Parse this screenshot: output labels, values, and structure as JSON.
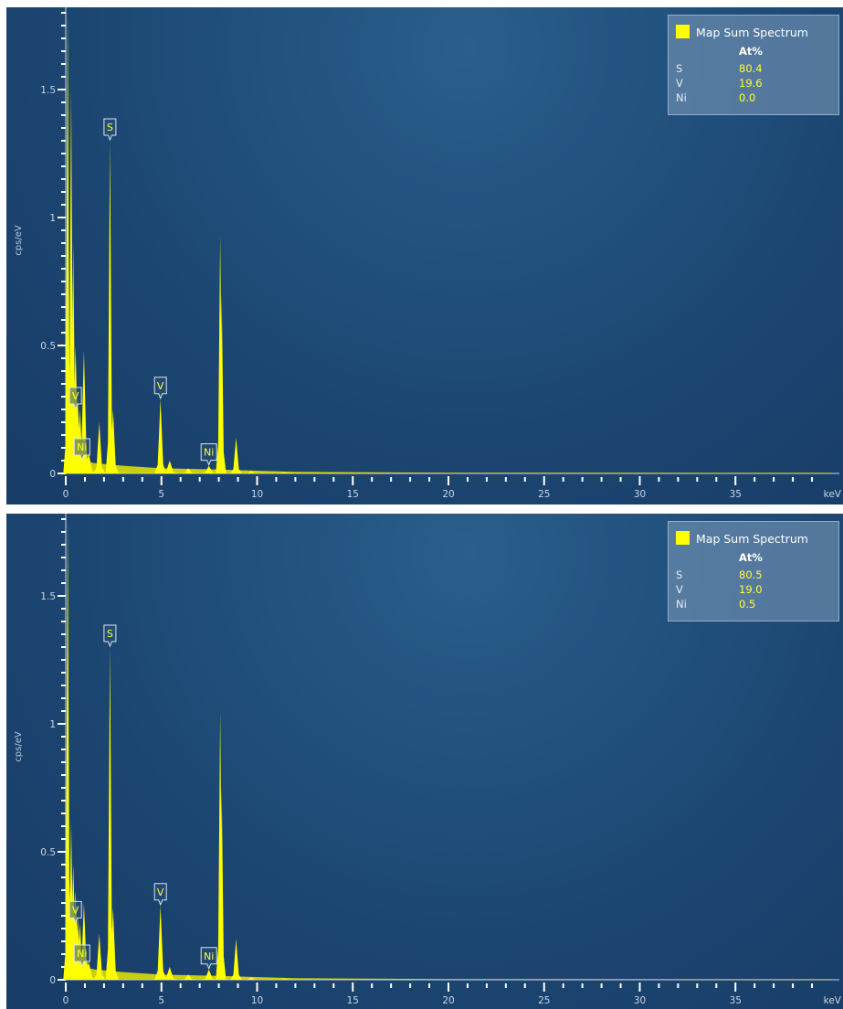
{
  "colors": {
    "accent": "#ffff00",
    "background": "#1f4a77"
  },
  "chart_data": [
    {
      "type": "line",
      "ylabel": "cps/eV",
      "xunit": "keV",
      "xlim": [
        0,
        40
      ],
      "ylim": [
        0,
        1.8
      ],
      "x_ticks": [
        "0",
        "5",
        "10",
        "15",
        "20",
        "25",
        "30",
        "35"
      ],
      "y_ticks": [
        "0",
        "0.5",
        "1",
        "1.5"
      ],
      "x_tick_values": [
        0,
        5,
        10,
        15,
        20,
        25,
        30,
        35
      ],
      "y_tick_values": [
        0,
        0.5,
        1,
        1.5
      ],
      "series": [
        {
          "name": "Map Sum Spectrum",
          "x": [
            0.1,
            0.18,
            0.28,
            0.39,
            0.51,
            0.62,
            0.74,
            0.85,
            0.95,
            1.05,
            1.2,
            1.75,
            2.31,
            2.47,
            4.95,
            5.43,
            6.4,
            7.48,
            8.07,
            8.15,
            8.9,
            9.7,
            11.4
          ],
          "y": [
            1.8,
            0.42,
            1.5,
            0.9,
            0.5,
            0.3,
            0.25,
            0.15,
            0.48,
            0.12,
            0.08,
            0.2,
            1.3,
            0.25,
            0.29,
            0.05,
            0.02,
            0.03,
            0.93,
            0.7,
            0.14,
            0.01,
            0.005
          ]
        }
      ],
      "peak_labels": [
        {
          "label": "S",
          "x": 2.31,
          "y": 1.3
        },
        {
          "label": "V",
          "x": 4.95,
          "y": 0.29
        },
        {
          "label": "V",
          "x": 0.51,
          "y": 0.25
        },
        {
          "label": "Ni",
          "x": 0.85,
          "y": 0.05
        },
        {
          "label": "Ni",
          "x": 7.48,
          "y": 0.03
        }
      ],
      "legend": {
        "title": "Map Sum Spectrum",
        "column_header": "At%",
        "rows": [
          {
            "element": "S",
            "value": "80.4"
          },
          {
            "element": "V",
            "value": "19.6"
          },
          {
            "element": "Ni",
            "value": "0.0"
          }
        ],
        "position": "top-right"
      }
    },
    {
      "type": "line",
      "ylabel": "cps/eV",
      "xunit": "keV",
      "xlim": [
        0,
        40
      ],
      "ylim": [
        0,
        1.8
      ],
      "x_ticks": [
        "0",
        "5",
        "10",
        "15",
        "20",
        "25",
        "30",
        "35"
      ],
      "y_ticks": [
        "0",
        "0.5",
        "1",
        "1.5"
      ],
      "x_tick_values": [
        0,
        5,
        10,
        15,
        20,
        25,
        30,
        35
      ],
      "y_tick_values": [
        0,
        0.5,
        1,
        1.5
      ],
      "series": [
        {
          "name": "Map Sum Spectrum",
          "x": [
            0.1,
            0.18,
            0.28,
            0.39,
            0.51,
            0.62,
            0.74,
            0.85,
            0.95,
            1.05,
            1.2,
            1.75,
            2.31,
            2.47,
            4.95,
            5.43,
            6.4,
            7.48,
            8.07,
            8.15,
            8.9,
            9.7,
            11.4
          ],
          "y": [
            1.8,
            0.4,
            0.62,
            0.45,
            0.35,
            0.25,
            0.22,
            0.12,
            0.3,
            0.1,
            0.07,
            0.18,
            1.3,
            0.28,
            0.29,
            0.05,
            0.02,
            0.04,
            1.05,
            0.75,
            0.16,
            0.01,
            0.005
          ]
        }
      ],
      "peak_labels": [
        {
          "label": "S",
          "x": 2.31,
          "y": 1.3
        },
        {
          "label": "V",
          "x": 4.95,
          "y": 0.29
        },
        {
          "label": "V",
          "x": 0.51,
          "y": 0.22
        },
        {
          "label": "Ni",
          "x": 0.85,
          "y": 0.05
        },
        {
          "label": "Ni",
          "x": 7.48,
          "y": 0.04
        }
      ],
      "legend": {
        "title": "Map Sum Spectrum",
        "column_header": "At%",
        "rows": [
          {
            "element": "S",
            "value": "80.5"
          },
          {
            "element": "V",
            "value": "19.0"
          },
          {
            "element": "Ni",
            "value": "0.5"
          }
        ],
        "position": "top-right"
      }
    }
  ]
}
